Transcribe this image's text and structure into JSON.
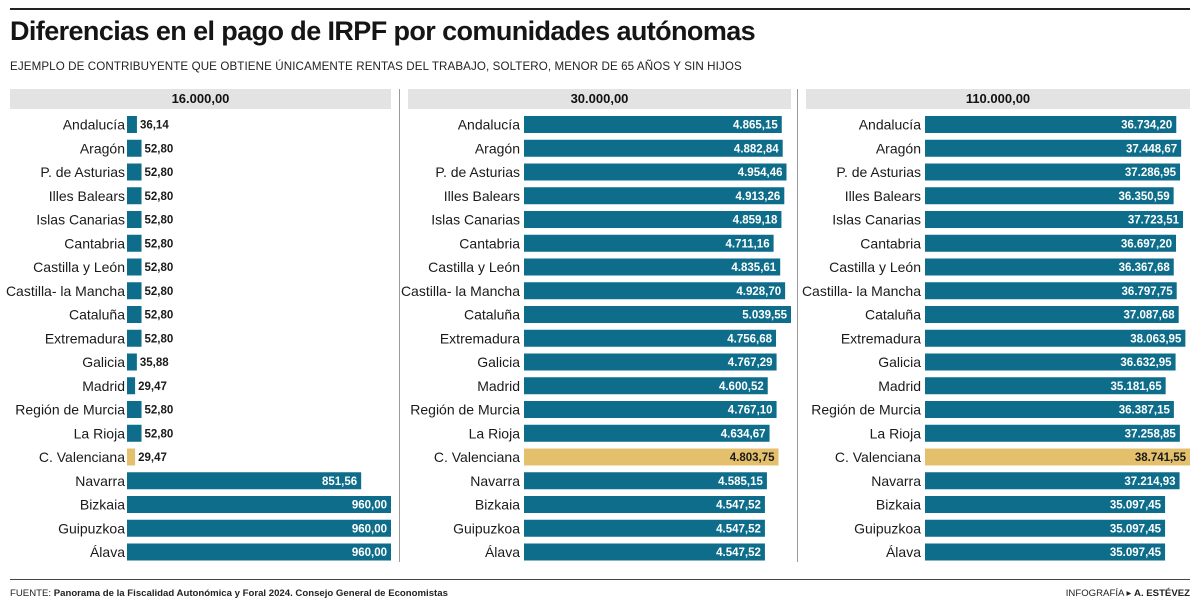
{
  "title": "Diferencias en el pago de IRPF por comunidades autónomas",
  "subtitle": "EJEMPLO DE CONTRIBUYENTE QUE OBTIENE ÚNICAMENTE RENTAS DEL TRABAJO, SOLTERO, MENOR DE 65 AÑOS Y SIN HIJOS",
  "footer": {
    "source_label": "FUENTE:",
    "source_text": "Panorama de la Fiscalidad Autonómica y Foral 2024. Consejo General de Economistas",
    "credit_label": "INFOGRAFÍA ▸",
    "credit_text": "A. ESTÉVEZ"
  },
  "colors": {
    "bar": "#0e6d8a",
    "highlight": "#e4c06c",
    "header_bg": "#e3e3e3"
  },
  "chart_data": [
    {
      "type": "bar",
      "orientation": "horizontal",
      "title": "16.000,00",
      "categories": [
        "Andalucía",
        "Aragón",
        "P. de Asturias",
        "Illes Balears",
        "Islas Canarias",
        "Cantabria",
        "Castilla y León",
        "Castilla- la Mancha",
        "Cataluña",
        "Extremadura",
        "Galicia",
        "Madrid",
        "Región de Murcia",
        "La Rioja",
        "C. Valenciana",
        "Navarra",
        "Bizkaia",
        "Guipuzkoa",
        "Álava"
      ],
      "values": [
        36.14,
        52.8,
        52.8,
        52.8,
        52.8,
        52.8,
        52.8,
        52.8,
        52.8,
        52.8,
        35.88,
        29.47,
        52.8,
        52.8,
        29.47,
        851.56,
        960.0,
        960.0,
        960.0
      ],
      "labels": [
        "36,14",
        "52,80",
        "52,80",
        "52,80",
        "52,80",
        "52,80",
        "52,80",
        "52,80",
        "52,80",
        "52,80",
        "35,88",
        "29,47",
        "52,80",
        "52,80",
        "29,47",
        "851,56",
        "960,00",
        "960,00",
        "960,00"
      ],
      "highlight": "C. Valenciana",
      "xlim": [
        0,
        960
      ]
    },
    {
      "type": "bar",
      "orientation": "horizontal",
      "title": "30.000,00",
      "categories": [
        "Andalucía",
        "Aragón",
        "P. de Asturias",
        "Illes Balears",
        "Islas Canarias",
        "Cantabria",
        "Castilla y León",
        "Castilla- la Mancha",
        "Cataluña",
        "Extremadura",
        "Galicia",
        "Madrid",
        "Región de Murcia",
        "La Rioja",
        "C. Valenciana",
        "Navarra",
        "Bizkaia",
        "Guipuzkoa",
        "Álava"
      ],
      "values": [
        4865.15,
        4882.84,
        4954.46,
        4913.26,
        4859.18,
        4711.16,
        4835.61,
        4928.7,
        5039.55,
        4756.68,
        4767.29,
        4600.52,
        4767.1,
        4634.67,
        4803.75,
        4585.15,
        4547.52,
        4547.52,
        4547.52
      ],
      "labels": [
        "4.865,15",
        "4.882,84",
        "4.954,46",
        "4.913,26",
        "4.859,18",
        "4.711,16",
        "4.835,61",
        "4.928,70",
        "5.039,55",
        "4.756,68",
        "4.767,29",
        "4.600,52",
        "4.767,10",
        "4.634,67",
        "4.803,75",
        "4.585,15",
        "4.547,52",
        "4.547,52",
        "4.547,52"
      ],
      "highlight": "C. Valenciana",
      "xlim": [
        0,
        5039.55
      ]
    },
    {
      "type": "bar",
      "orientation": "horizontal",
      "title": "110.000,00",
      "categories": [
        "Andalucía",
        "Aragón",
        "P. de Asturias",
        "Illes Balears",
        "Islas Canarias",
        "Cantabria",
        "Castilla y León",
        "Castilla- la Mancha",
        "Cataluña",
        "Extremadura",
        "Galicia",
        "Madrid",
        "Región de Murcia",
        "La Rioja",
        "C. Valenciana",
        "Navarra",
        "Bizkaia",
        "Guipuzkoa",
        "Álava"
      ],
      "values": [
        36734.2,
        37448.67,
        37286.95,
        36350.59,
        37723.51,
        36697.2,
        36367.68,
        36797.75,
        37087.68,
        38063.95,
        36632.95,
        35181.65,
        36387.15,
        37258.85,
        38741.55,
        37214.93,
        35097.45,
        35097.45,
        35097.45
      ],
      "labels": [
        "36.734,20",
        "37.448,67",
        "37.286,95",
        "36.350,59",
        "37.723,51",
        "36.697,20",
        "36.367,68",
        "36.797,75",
        "37.087,68",
        "38.063,95",
        "36.632,95",
        "35.181,65",
        "36.387,15",
        "37.258,85",
        "38.741,55",
        "37.214,93",
        "35.097,45",
        "35.097,45",
        "35.097,45"
      ],
      "highlight": "C. Valenciana",
      "xlim": [
        0,
        38741.55
      ]
    }
  ]
}
